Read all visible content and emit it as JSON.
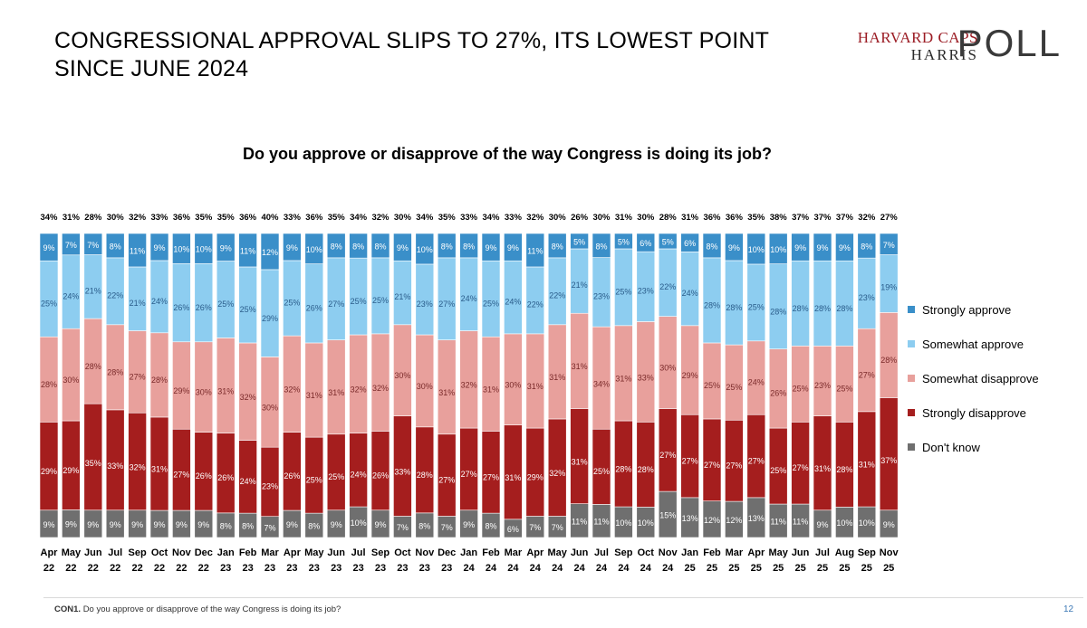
{
  "slide": {
    "title_line1": "CONGRESSIONAL APPROVAL SLIPS TO 27%, ITS LOWEST POINT",
    "title_line2": "SINCE JUNE 2024",
    "logo_top": "HARVARD CAPS",
    "logo_mid": "HARRIS",
    "logo_poll": "POLL",
    "question": "Do you approve or disapprove of the way Congress is doing its job?",
    "footer_code": "CON1.",
    "footer_text": "Do you approve or disapprove of the way Congress is doing its job?",
    "page_number": "12"
  },
  "colors": {
    "strongly_approve": "#3a8fc9",
    "somewhat_approve": "#8dcdf0",
    "somewhat_disapprove": "#e8a09c",
    "strongly_disapprove": "#a51e1e",
    "dont_know": "#6f6f6f"
  },
  "chart_data": {
    "type": "bar",
    "stacked": true,
    "percent_stacked": true,
    "title": "Do you approve or disapprove of the way Congress is doing its job?",
    "legend_position": "right",
    "categories": [
      [
        "Apr",
        "22"
      ],
      [
        "May",
        "22"
      ],
      [
        "Jun",
        "22"
      ],
      [
        "Jul",
        "22"
      ],
      [
        "Sep",
        "22"
      ],
      [
        "Oct",
        "22"
      ],
      [
        "Nov",
        "22"
      ],
      [
        "Dec",
        "22"
      ],
      [
        "Jan",
        "23"
      ],
      [
        "Feb",
        "23"
      ],
      [
        "Mar",
        "23"
      ],
      [
        "Apr",
        "23"
      ],
      [
        "May",
        "23"
      ],
      [
        "Jun",
        "23"
      ],
      [
        "Jul",
        "23"
      ],
      [
        "Sep",
        "23"
      ],
      [
        "Oct",
        "23"
      ],
      [
        "Nov",
        "23"
      ],
      [
        "Dec",
        "23"
      ],
      [
        "Jan",
        "24"
      ],
      [
        "Feb",
        "24"
      ],
      [
        "Mar",
        "24"
      ],
      [
        "Apr",
        "24"
      ],
      [
        "May",
        "24"
      ],
      [
        "Jun",
        "24"
      ],
      [
        "Jul",
        "24"
      ],
      [
        "Sep",
        "24"
      ],
      [
        "Oct",
        "24"
      ],
      [
        "Nov",
        "24"
      ],
      [
        "Jan",
        "25"
      ],
      [
        "Feb",
        "25"
      ],
      [
        "Mar",
        "25"
      ],
      [
        "Apr",
        "25"
      ],
      [
        "May",
        "25"
      ],
      [
        "Jun",
        "25"
      ],
      [
        "Jul",
        "25"
      ],
      [
        "Aug",
        "25"
      ],
      [
        "Sep",
        "25"
      ],
      [
        "Nov",
        "25"
      ]
    ],
    "totals_approve": [
      34,
      31,
      28,
      30,
      32,
      33,
      36,
      35,
      35,
      36,
      40,
      33,
      36,
      35,
      34,
      32,
      30,
      34,
      35,
      33,
      34,
      33,
      32,
      30,
      26,
      30,
      31,
      30,
      28,
      31,
      36,
      36,
      35,
      38,
      37,
      37,
      37,
      32,
      27
    ],
    "series": [
      {
        "name": "Don't know",
        "key": "dont_know",
        "values": [
          9,
          9,
          9,
          9,
          9,
          9,
          9,
          9,
          8,
          8,
          7,
          9,
          8,
          9,
          10,
          9,
          7,
          8,
          7,
          9,
          8,
          6,
          7,
          7,
          11,
          11,
          10,
          10,
          15,
          13,
          12,
          12,
          13,
          11,
          11,
          9,
          10,
          10,
          9
        ]
      },
      {
        "name": "Strongly disapprove",
        "key": "strongly_disapprove",
        "values": [
          29,
          29,
          35,
          33,
          32,
          31,
          27,
          26,
          26,
          24,
          23,
          26,
          25,
          25,
          24,
          26,
          33,
          28,
          27,
          27,
          27,
          31,
          29,
          32,
          31,
          25,
          28,
          28,
          27,
          27,
          27,
          27,
          27,
          25,
          27,
          31,
          28,
          31,
          37
        ]
      },
      {
        "name": "Somewhat disapprove",
        "key": "somewhat_disapprove",
        "values": [
          28,
          30,
          28,
          28,
          27,
          28,
          29,
          30,
          31,
          32,
          30,
          32,
          31,
          31,
          32,
          32,
          30,
          30,
          31,
          32,
          31,
          30,
          31,
          31,
          31,
          34,
          31,
          33,
          30,
          29,
          25,
          25,
          24,
          26,
          25,
          23,
          25,
          27,
          28
        ]
      },
      {
        "name": "Somewhat approve",
        "key": "somewhat_approve",
        "values": [
          25,
          24,
          21,
          22,
          21,
          24,
          26,
          26,
          25,
          25,
          29,
          25,
          26,
          27,
          25,
          25,
          21,
          23,
          27,
          24,
          25,
          24,
          22,
          22,
          21,
          23,
          25,
          23,
          22,
          24,
          28,
          28,
          25,
          28,
          28,
          28,
          28,
          23,
          19
        ]
      },
      {
        "name": "Strongly approve",
        "key": "strongly_approve",
        "values": [
          9,
          7,
          7,
          8,
          11,
          9,
          10,
          10,
          9,
          11,
          12,
          9,
          10,
          8,
          8,
          8,
          9,
          10,
          8,
          8,
          9,
          9,
          11,
          8,
          5,
          8,
          5,
          6,
          5,
          6,
          8,
          9,
          10,
          10,
          9,
          9,
          9,
          8,
          7
        ]
      }
    ],
    "legend_order": [
      "Strongly approve",
      "Somewhat approve",
      "Somewhat disapprove",
      "Strongly disapprove",
      "Don't know"
    ],
    "ylim": [
      0,
      100
    ],
    "xlabel": "",
    "ylabel": ""
  }
}
